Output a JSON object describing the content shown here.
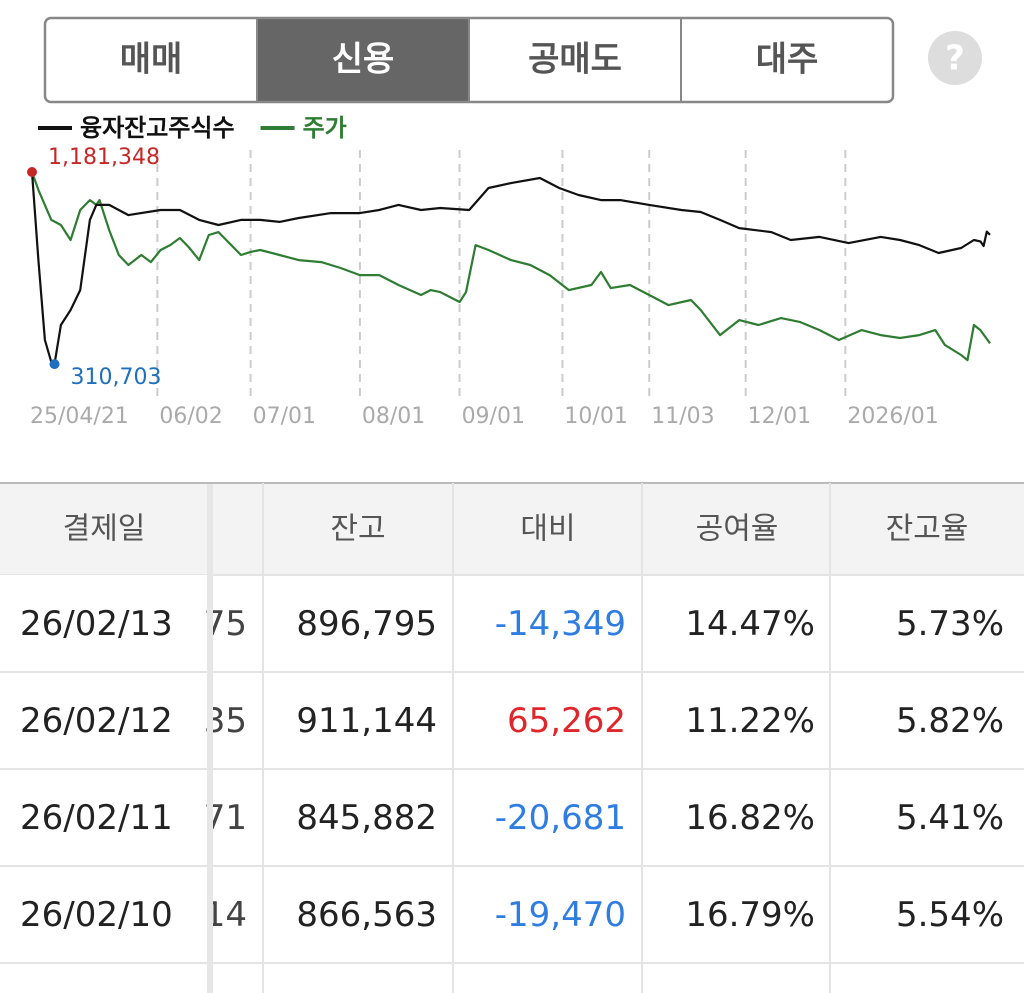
{
  "tabs": [
    "매매",
    "신용",
    "공매도",
    "대주"
  ],
  "selected_tab": 1,
  "help": "?",
  "chart_data": {
    "type": "line",
    "xlim": [
      0,
      298
    ],
    "ylim": [
      148000,
      1281000
    ],
    "xticks": [
      {
        "value": 0,
        "label": "25/04/21"
      },
      {
        "value": 39,
        "label": "06/02"
      },
      {
        "value": 68,
        "label": "07/01"
      },
      {
        "value": 102,
        "label": "08/01"
      },
      {
        "value": 133,
        "label": "09/01"
      },
      {
        "value": 165,
        "label": "10/01"
      },
      {
        "value": 192,
        "label": "11/03"
      },
      {
        "value": 222,
        "label": "12/01"
      },
      {
        "value": 253,
        "label": "2026/01"
      }
    ],
    "grid": true,
    "max_label": {
      "value": 1181348,
      "label": "1,181,348",
      "color": "#c62828"
    },
    "min_label": {
      "value": 310703,
      "label": "310,703",
      "color": "#1e6fbf"
    },
    "series": [
      {
        "name": "융자잔고주식수",
        "color": "#111111",
        "x": [
          0,
          2,
          4,
          6,
          7,
          9,
          12,
          15,
          18,
          20,
          24,
          30,
          40,
          46,
          52,
          58,
          65,
          71,
          77,
          83,
          93,
          102,
          108,
          114,
          121,
          127,
          136,
          142,
          149,
          158,
          164,
          170,
          177,
          183,
          192,
          202,
          208,
          214,
          220,
          230,
          236,
          245,
          254,
          264,
          270,
          276,
          282,
          289,
          293,
          295,
          296,
          297,
          298
        ],
        "values": [
          1181348,
          782000,
          420000,
          320000,
          310703,
          488000,
          556000,
          646000,
          964000,
          1032000,
          1032000,
          986000,
          1009000,
          1009000,
          964000,
          941000,
          964000,
          964000,
          955000,
          973000,
          995000,
          995000,
          1009000,
          1032000,
          1009000,
          1018000,
          1009000,
          1109000,
          1131000,
          1154000,
          1109000,
          1077000,
          1054000,
          1054000,
          1032000,
          1009000,
          1000000,
          964000,
          927000,
          909000,
          873000,
          887000,
          859000,
          887000,
          873000,
          850000,
          814000,
          837000,
          873000,
          866563,
          845882,
          911144,
          896795
        ]
      },
      {
        "name": "주가",
        "color": "#2e7d32",
        "x": [
          0,
          2,
          6,
          9,
          12,
          15,
          18,
          20,
          21,
          24,
          27,
          30,
          34,
          37,
          40,
          43,
          46,
          49,
          52,
          55,
          58,
          62,
          65,
          68,
          71,
          77,
          83,
          90,
          96,
          102,
          108,
          114,
          121,
          124,
          127,
          133,
          135,
          138,
          142,
          149,
          155,
          161,
          167,
          174,
          177,
          180,
          186,
          192,
          198,
          205,
          208,
          214,
          220,
          226,
          233,
          239,
          245,
          251,
          258,
          264,
          270,
          276,
          281,
          284,
          289,
          291,
          293,
          295,
          298
        ],
        "values": [
          1181000,
          1100000,
          964000,
          941000,
          873000,
          1009000,
          1054000,
          1032000,
          1054000,
          918000,
          805000,
          760000,
          805000,
          773000,
          828000,
          850000,
          882000,
          837000,
          782000,
          896000,
          909000,
          850000,
          805000,
          819000,
          828000,
          805000,
          782000,
          773000,
          746000,
          714000,
          714000,
          669000,
          624000,
          646000,
          637000,
          592000,
          637000,
          850000,
          828000,
          782000,
          760000,
          714000,
          646000,
          669000,
          728000,
          655000,
          669000,
          624000,
          578000,
          601000,
          556000,
          442000,
          510000,
          488000,
          519000,
          501000,
          465000,
          420000,
          465000,
          442000,
          429000,
          442000,
          465000,
          397000,
          352000,
          329000,
          488000,
          465000,
          405000
        ]
      }
    ]
  },
  "table": {
    "headers": {
      "date": "결제일",
      "balance": "잔고",
      "change": "대비",
      "ratio": "공여율",
      "balance_ratio": "잔고율"
    },
    "rows": [
      {
        "date": "26/02/13",
        "partial": "75",
        "balance": "896,795",
        "change": "-14,349",
        "ratio": "14.47%",
        "balance_ratio": "5.73%"
      },
      {
        "date": "26/02/12",
        "partial": "35",
        "balance": "911,144",
        "change": "65,262",
        "ratio": "11.22%",
        "balance_ratio": "5.82%"
      },
      {
        "date": "26/02/11",
        "partial": "71",
        "balance": "845,882",
        "change": "-20,681",
        "ratio": "16.82%",
        "balance_ratio": "5.41%"
      },
      {
        "date": "26/02/10",
        "partial": "14",
        "balance": "866,563",
        "change": "-19,470",
        "ratio": "16.79%",
        "balance_ratio": "5.54%"
      }
    ]
  }
}
